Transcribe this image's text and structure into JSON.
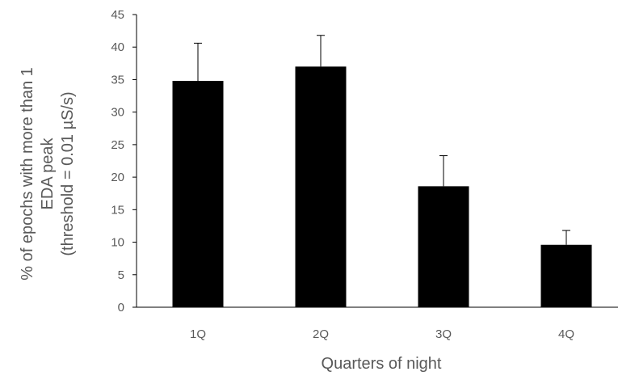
{
  "chart_data": {
    "type": "bar",
    "categories": [
      "1Q",
      "2Q",
      "3Q",
      "4Q"
    ],
    "values": [
      34.8,
      37.0,
      18.6,
      9.6
    ],
    "error_bars_upper": [
      5.8,
      4.8,
      4.7,
      2.2
    ],
    "xlabel": "Quarters of night",
    "ylabel_lines": [
      "% of epochs with more than 1",
      "EDA peak",
      "(threshold = 0.01 µS/s)"
    ],
    "ylim": [
      0,
      45
    ],
    "yticks": [
      0,
      5,
      10,
      15,
      20,
      25,
      30,
      35,
      40,
      45
    ],
    "grid": false,
    "bar_color": "#000000",
    "axis_color": "#000000",
    "text_color": "#595959"
  }
}
